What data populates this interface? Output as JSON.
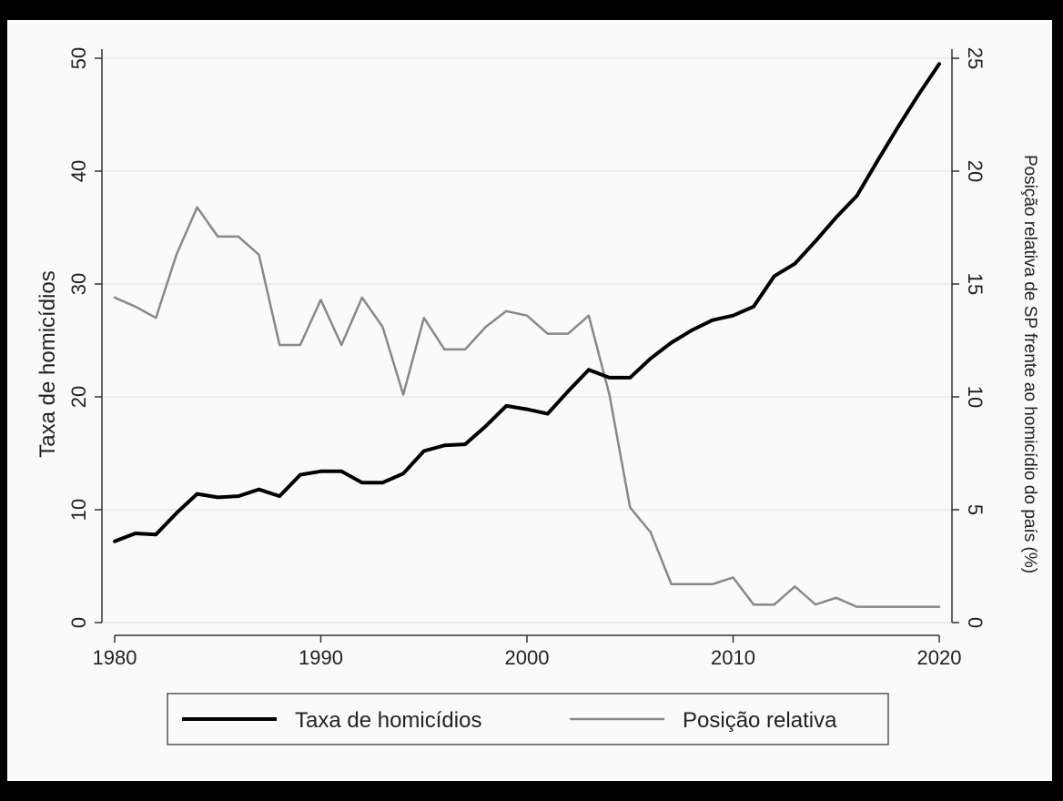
{
  "chart_data": {
    "type": "line",
    "title": "",
    "xlabel": "",
    "ylabel": "Taxa de homicídios",
    "ylabel_right": "Posição relativa de SP frente ao homicídio do país (%)",
    "x": [
      1980,
      1981,
      1982,
      1983,
      1984,
      1985,
      1986,
      1987,
      1988,
      1989,
      1990,
      1991,
      1992,
      1993,
      1994,
      1995,
      1996,
      1997,
      1998,
      1999,
      2000,
      2001,
      2002,
      2003,
      2004,
      2005,
      2006,
      2007,
      2008,
      2009,
      2010,
      2011,
      2012,
      2013,
      2014,
      2015,
      2016,
      2017,
      2018,
      2019,
      2020
    ],
    "xlim": [
      1980,
      2020
    ],
    "xticks": [
      "1980",
      "1990",
      "2000",
      "2010",
      "2020"
    ],
    "ylim": [
      0,
      50
    ],
    "yticks": [
      "0",
      "10",
      "20",
      "30",
      "40",
      "50"
    ],
    "ylim_right": [
      0,
      25
    ],
    "yticks_right": [
      "0",
      "5",
      "10",
      "15",
      "20",
      "25"
    ],
    "grid": true,
    "legend_position": "bottom",
    "series": [
      {
        "name": "Taxa de homicídios",
        "axis": "left",
        "color": "#000000",
        "values": [
          7.2,
          7.9,
          7.8,
          9.7,
          11.4,
          11.1,
          11.2,
          11.8,
          11.2,
          13.1,
          13.4,
          13.4,
          12.4,
          12.4,
          13.2,
          15.2,
          15.7,
          15.8,
          17.4,
          19.2,
          18.9,
          18.5,
          20.5,
          22.4,
          21.7,
          21.7,
          23.4,
          24.8,
          25.9,
          26.8,
          27.2,
          28.0,
          30.7,
          31.8,
          33.8,
          35.9,
          37.8,
          40.9,
          43.9,
          46.8,
          49.5
        ]
      },
      {
        "name": "Posição relativa",
        "axis": "right",
        "color": "#888888",
        "values": [
          14.4,
          14.0,
          13.5,
          16.3,
          18.4,
          17.1,
          17.1,
          16.3,
          12.3,
          12.3,
          14.3,
          12.3,
          14.4,
          13.1,
          10.1,
          13.5,
          12.1,
          12.1,
          13.1,
          13.8,
          13.6,
          12.8,
          12.8,
          13.6,
          10.1,
          5.1,
          4.0,
          1.7,
          1.7,
          1.7,
          2.0,
          0.8,
          0.8,
          1.6,
          0.8,
          1.1,
          0.7,
          0.7,
          0.7,
          0.7,
          0.7
        ]
      }
    ]
  }
}
